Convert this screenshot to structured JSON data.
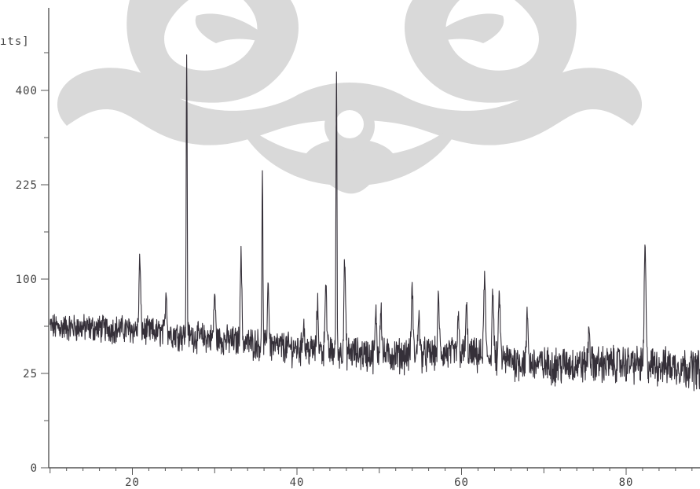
{
  "chart_data": {
    "type": "line",
    "title": "",
    "xlabel": "",
    "ylabel": "[Counts]",
    "ylabel_visible_fragment": "ıts]",
    "y_scale": "sqrt",
    "xlim": [
      10,
      90
    ],
    "ylim": [
      0,
      484
    ],
    "x_ticks": [
      20,
      40,
      60,
      80
    ],
    "x_tick_labels": [
      "20",
      "40",
      "60",
      "80"
    ],
    "y_ticks": [
      0,
      25,
      100,
      225,
      400
    ],
    "y_tick_labels": [
      "0",
      "25",
      "100",
      "225",
      "400"
    ],
    "grid": false,
    "line_color": "#353039",
    "baseline": [
      [
        10,
        56
      ],
      [
        20,
        54
      ],
      [
        30,
        47
      ],
      [
        40,
        40
      ],
      [
        50,
        36
      ],
      [
        60,
        37
      ],
      [
        70,
        30
      ],
      [
        80,
        31
      ],
      [
        90,
        28
      ]
    ],
    "noise_amplitude": 9,
    "peaks": [
      {
        "x": 20.9,
        "y": 122
      },
      {
        "x": 24.1,
        "y": 88
      },
      {
        "x": 26.6,
        "y": 480
      },
      {
        "x": 30.0,
        "y": 85
      },
      {
        "x": 33.2,
        "y": 128
      },
      {
        "x": 35.8,
        "y": 258
      },
      {
        "x": 36.5,
        "y": 95
      },
      {
        "x": 40.8,
        "y": 60
      },
      {
        "x": 42.5,
        "y": 75
      },
      {
        "x": 43.5,
        "y": 98
      },
      {
        "x": 44.8,
        "y": 443
      },
      {
        "x": 45.8,
        "y": 118
      },
      {
        "x": 49.6,
        "y": 66
      },
      {
        "x": 50.2,
        "y": 74
      },
      {
        "x": 54.0,
        "y": 92
      },
      {
        "x": 54.8,
        "y": 68
      },
      {
        "x": 57.2,
        "y": 82
      },
      {
        "x": 59.6,
        "y": 62
      },
      {
        "x": 60.6,
        "y": 72
      },
      {
        "x": 62.8,
        "y": 104
      },
      {
        "x": 63.8,
        "y": 88
      },
      {
        "x": 64.6,
        "y": 86
      },
      {
        "x": 68.0,
        "y": 66
      },
      {
        "x": 75.5,
        "y": 56
      },
      {
        "x": 82.3,
        "y": 138
      }
    ]
  }
}
